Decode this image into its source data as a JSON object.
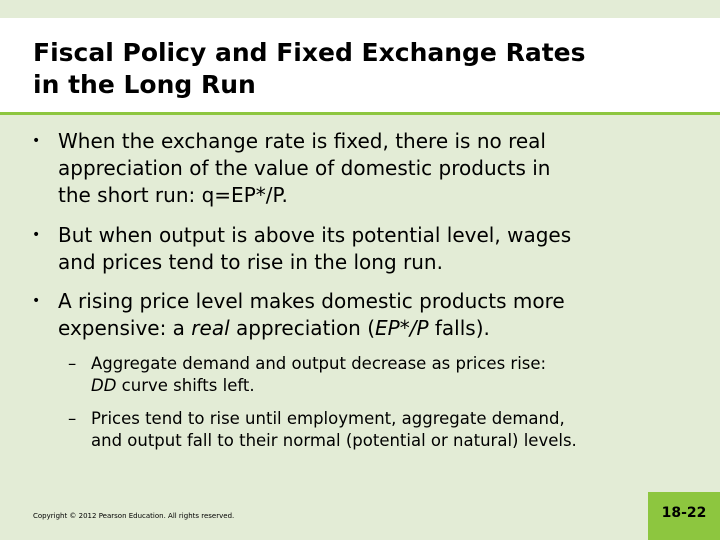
{
  "slide": {
    "title_lines": [
      "Fiscal Policy and Fixed Exchange Rates",
      "in the Long Run"
    ],
    "bullets": [
      {
        "lines": [
          "When the exchange rate is fixed, there is no real",
          "appreciation of the value of domestic products in",
          "the short run: q=EP*/P."
        ]
      },
      {
        "lines": [
          "But when output is above its potential level, wages",
          "and prices tend to rise in the long run."
        ]
      },
      {
        "line1": "A rising price level makes domestic products more",
        "line2_pre": "expensive: a ",
        "line2_italic": "real",
        "line2_mid": " appreciation (",
        "line2_italic2": "EP*/P",
        "line2_post": " falls).",
        "sub_bullets": [
          {
            "line1": "Aggregate demand and output decrease as prices rise:",
            "line2_italic": "DD",
            "line2_post": " curve shifts left."
          },
          {
            "line1": "Prices tend to rise until employment, aggregate demand,",
            "line2": "and output fall to their normal (potential or natural) levels."
          }
        ]
      }
    ],
    "bullet_symbol": "•",
    "dash_symbol": "–",
    "footer": "Copyright © 2012 Pearson Education. All rights reserved.",
    "page_number": "18-22"
  },
  "colors": {
    "background": "#e3ecd6",
    "accent": "#8dc63f",
    "title_bg": "#ffffff"
  }
}
